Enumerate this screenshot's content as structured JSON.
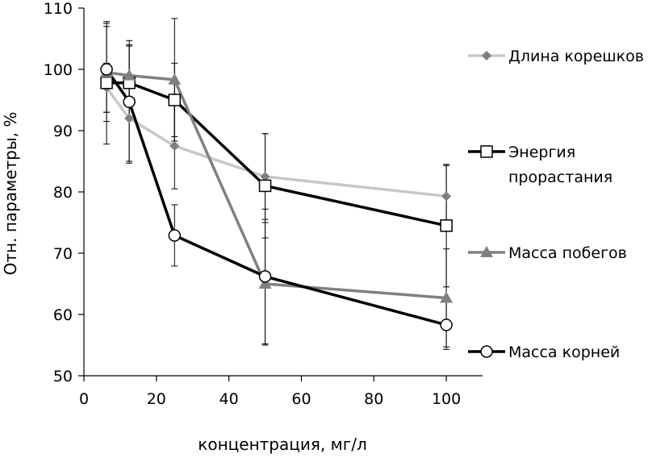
{
  "chart_data": {
    "type": "line",
    "title": "",
    "xlabel": "концентрация, мг/л",
    "ylabel": "Отн. параметры, %",
    "xlim": [
      0,
      110
    ],
    "ylim": [
      50,
      110
    ],
    "xticks": [
      0,
      20,
      40,
      60,
      80,
      100
    ],
    "yticks": [
      50,
      60,
      70,
      80,
      90,
      100,
      110
    ],
    "x": [
      6.25,
      12.5,
      25,
      50,
      100
    ],
    "series": [
      {
        "name": "Длина корешков",
        "color": "#c8c8c8",
        "marker": "diamond",
        "marker_fill": "#7f7f7f",
        "values": [
          97,
          92,
          87.5,
          82.5,
          79.3
        ],
        "error": [
          4,
          7,
          7,
          7,
          5
        ]
      },
      {
        "name": "Энергия прорастания",
        "color": "#000000",
        "marker": "square",
        "marker_fill": "#ffffff",
        "values": [
          97.8,
          97.8,
          95,
          81,
          74.5
        ],
        "error": [
          10,
          6,
          6,
          8.5,
          10
        ]
      },
      {
        "name": "Масса побегов",
        "color": "#808080",
        "marker": "triangle",
        "marker_fill": "#808080",
        "values": [
          99.5,
          99,
          98.3,
          65,
          62.7
        ],
        "error": [
          8,
          5,
          10,
          10,
          8
        ]
      },
      {
        "name": "Масса корней",
        "color": "#000000",
        "marker": "circle",
        "marker_fill": "#ffffff",
        "values": [
          100,
          94.7,
          72.9,
          66.2,
          58.3
        ],
        "error": [
          7,
          10,
          5,
          11,
          4
        ]
      }
    ],
    "legend_position": "right"
  }
}
